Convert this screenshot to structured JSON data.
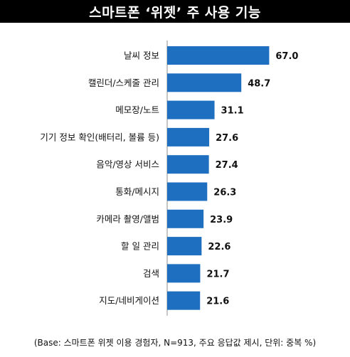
{
  "title": "스마트폰 ‘위젯’ 주 사용 기능",
  "footnote": "(Base: 스마트폰 위젯 이용 경험자, N=913, 주요 응답값 제시, 단위: 중복 %)",
  "colors": {
    "bar": "#1f6fc0",
    "title_bg": "#000000",
    "title_text": "#ffffff",
    "axis": "#8c8c8c"
  },
  "chart_data": {
    "type": "bar",
    "orientation": "horizontal",
    "categories": [
      "날씨 정보",
      "캘린더/스케줄 관리",
      "메모장/노트",
      "기기 정보 확인(배터리, 볼륨 등)",
      "음악/영상 서비스",
      "통화/메시지",
      "카메라 촬영/앨범",
      "할 일 관리",
      "검색",
      "지도/네비게이션"
    ],
    "values": [
      67.0,
      48.7,
      31.1,
      27.6,
      27.4,
      26.3,
      23.9,
      22.6,
      21.7,
      21.6
    ],
    "value_labels": [
      "67.0",
      "48.7",
      "31.1",
      "27.6",
      "27.4",
      "26.3",
      "23.9",
      "22.6",
      "21.7",
      "21.6"
    ],
    "xlim": [
      0,
      80
    ],
    "grid": false,
    "legend": "none"
  }
}
